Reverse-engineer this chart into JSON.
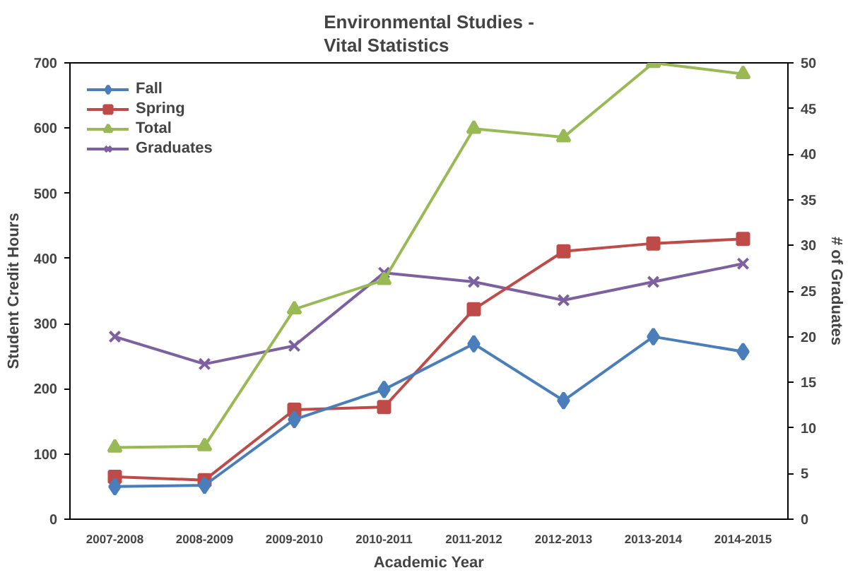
{
  "chart_data": {
    "type": "line",
    "title": "Environmental Studies -\nVital Statistics",
    "xlabel": "Academic Year",
    "ylabel": "Student Credit Hours",
    "y2label": "# of Graduates",
    "categories": [
      "2007-2008",
      "2008-2009",
      "2009-2010",
      "2010-2011",
      "2011-2012",
      "2012-2013",
      "2013-2014",
      "2014-2015"
    ],
    "series": [
      {
        "name": "Fall",
        "color": "#4a7ebb",
        "marker": "diamond",
        "values": [
          50,
          52,
          153,
          199,
          269,
          182,
          280,
          257
        ]
      },
      {
        "name": "Spring",
        "color": "#be4b48",
        "marker": "square",
        "values": [
          65,
          60,
          168,
          172,
          322,
          411,
          423,
          430
        ]
      },
      {
        "name": "Total",
        "color": "#98b954",
        "marker": "triangle",
        "values": [
          110,
          112,
          322,
          367,
          599,
          586,
          700,
          683
        ]
      },
      {
        "name": "Graduates",
        "color": "#7d60a0",
        "marker": "cross",
        "axis": "y2",
        "values": [
          20,
          17,
          19,
          27,
          26,
          24,
          26,
          28
        ]
      }
    ],
    "ylim": [
      0,
      700
    ],
    "yticks": [
      0,
      100,
      200,
      300,
      400,
      500,
      600,
      700
    ],
    "y2lim": [
      0,
      50
    ],
    "y2ticks": [
      0,
      5,
      10,
      15,
      20,
      25,
      30,
      35,
      40,
      45,
      50
    ],
    "legend": "top left",
    "grid": false
  }
}
